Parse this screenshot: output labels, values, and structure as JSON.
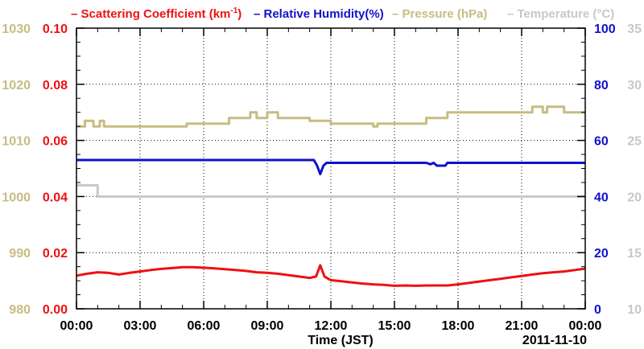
{
  "chart_data": {
    "type": "line",
    "legend_placement": "top",
    "legend": [
      {
        "label": "– Scattering Coefficient (km",
        "sup": "-1",
        "close": ")",
        "color": "#ee1111"
      },
      {
        "label": "– Relative Humidity(%)",
        "sup": "",
        "close": "",
        "color": "#1111cc"
      },
      {
        "label": "– Pressure (hPa)",
        "sup": "",
        "close": "",
        "color": "#c8bc82"
      },
      {
        "label": "– Temperature (°C)",
        "sup": "",
        "close": "",
        "color": "#c8c8c8"
      }
    ],
    "xlabel": "Time (JST)",
    "date_label": "2011-11-10",
    "x_ticks": [
      "00:00",
      "03:00",
      "06:00",
      "09:00",
      "12:00",
      "15:00",
      "18:00",
      "21:00",
      "00:00"
    ],
    "xlim_hours": [
      0,
      24
    ],
    "grid": true,
    "axes": {
      "scattering": {
        "side": "left-inner",
        "ylim": [
          0,
          0.1
        ],
        "ticks": [
          "0.00",
          "0.02",
          "0.04",
          "0.06",
          "0.08",
          "0.10"
        ],
        "color": "#ee1111"
      },
      "pressure": {
        "side": "left-outer",
        "ylim": [
          980,
          1030
        ],
        "ticks": [
          "980",
          "990",
          "1000",
          "1010",
          "1020",
          "1030"
        ],
        "color": "#c8bc82"
      },
      "humidity": {
        "side": "right-inner",
        "ylim": [
          0,
          100
        ],
        "ticks": [
          "0",
          "20",
          "40",
          "60",
          "80",
          "100"
        ],
        "color": "#1111cc"
      },
      "temperature": {
        "side": "right-outer",
        "ylim": [
          10,
          35
        ],
        "ticks": [
          "10",
          "15",
          "20",
          "25",
          "30",
          "35"
        ],
        "color": "#c8c8c8"
      }
    },
    "series": [
      {
        "name": "Scattering Coefficient",
        "axis": "scattering",
        "color": "#ee1111",
        "x": [
          0,
          0.5,
          1,
          1.5,
          2,
          2.5,
          3,
          3.5,
          4,
          4.5,
          5,
          5.5,
          6,
          6.5,
          7,
          7.5,
          8,
          8.5,
          9,
          9.5,
          10,
          10.5,
          11,
          11.3,
          11.5,
          11.7,
          12,
          12.5,
          13,
          13.5,
          14,
          14.5,
          15,
          15.5,
          16,
          16.5,
          17,
          17.5,
          18,
          18.5,
          19,
          19.5,
          20,
          20.5,
          21,
          21.5,
          22,
          22.5,
          23,
          23.5,
          24
        ],
        "y": [
          0.0118,
          0.0125,
          0.013,
          0.0128,
          0.0122,
          0.0128,
          0.0133,
          0.0138,
          0.0142,
          0.0145,
          0.0148,
          0.0148,
          0.0146,
          0.0144,
          0.0141,
          0.0138,
          0.0135,
          0.013,
          0.0128,
          0.0125,
          0.012,
          0.0115,
          0.011,
          0.0115,
          0.0155,
          0.0115,
          0.0102,
          0.0098,
          0.0094,
          0.009,
          0.0087,
          0.0085,
          0.0082,
          0.0083,
          0.0082,
          0.0083,
          0.0083,
          0.0083,
          0.0087,
          0.0092,
          0.0097,
          0.0102,
          0.0107,
          0.0112,
          0.0117,
          0.0122,
          0.0127,
          0.013,
          0.0133,
          0.0138,
          0.0143
        ]
      },
      {
        "name": "Relative Humidity",
        "axis": "humidity",
        "color": "#1111cc",
        "x": [
          0,
          2,
          4,
          6,
          8,
          10,
          11.2,
          11.35,
          11.5,
          11.65,
          11.8,
          13,
          15,
          16.5,
          16.7,
          16.85,
          17.0,
          17.4,
          17.5,
          18,
          20,
          22,
          24
        ],
        "y": [
          53,
          53,
          53,
          53,
          53,
          53,
          53,
          51,
          48,
          51,
          52,
          52,
          52,
          52,
          51.5,
          52,
          51,
          51,
          52,
          52,
          52,
          52,
          52
        ]
      },
      {
        "name": "Pressure",
        "axis": "pressure",
        "color": "#c8bc82",
        "step": true,
        "x": [
          0,
          0.4,
          0.8,
          1.1,
          1.3,
          1.5,
          3,
          5,
          5.2,
          7,
          7.2,
          8.2,
          8.5,
          9.0,
          9.5,
          10,
          10.5,
          11,
          12,
          14,
          14.2,
          15,
          16.5,
          17,
          17.5,
          19,
          21,
          21.5,
          22,
          22.2,
          23,
          24
        ],
        "y": [
          1012.5,
          1013.5,
          1012.5,
          1013.5,
          1012.5,
          1012.5,
          1012.5,
          1012.5,
          1013.0,
          1013.0,
          1014.0,
          1015.0,
          1014.0,
          1015.0,
          1014.0,
          1014.0,
          1014.0,
          1013.5,
          1013.0,
          1012.5,
          1013.0,
          1013.0,
          1014.0,
          1014.0,
          1015.0,
          1015.0,
          1015.0,
          1016.0,
          1015.0,
          1016.0,
          1015.0,
          1015.0
        ]
      },
      {
        "name": "Temperature",
        "axis": "temperature",
        "color": "#c8c8c8",
        "step": true,
        "x": [
          0,
          0.95,
          1.0,
          24
        ],
        "y": [
          21.0,
          21.0,
          20.0,
          20.0
        ]
      }
    ]
  }
}
